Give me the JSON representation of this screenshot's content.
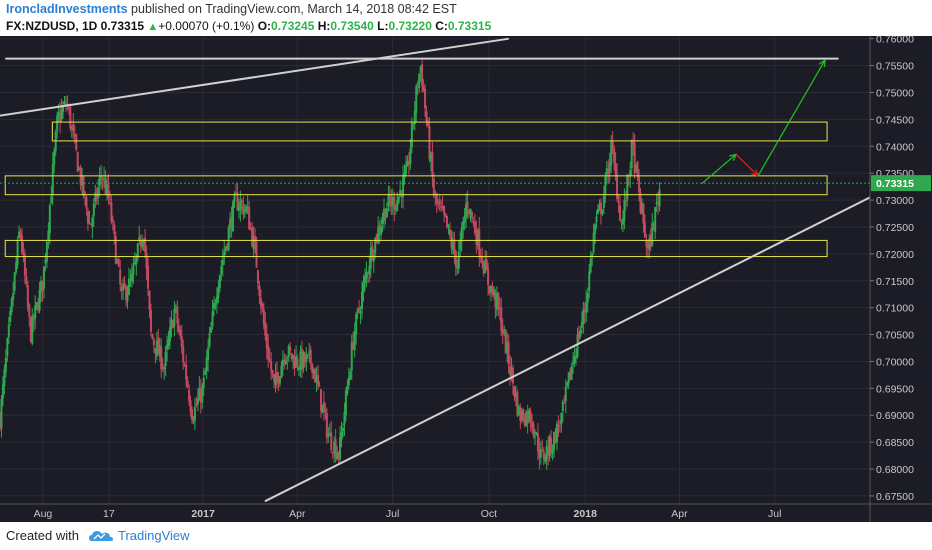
{
  "header": {
    "author": "IroncladInvestments",
    "published_text": " published on TradingView.com, March 14, 2018 08:42 EST",
    "symbol": "FX:NZDUSD, 1D",
    "last": " 0.73315 ",
    "up_symbol": "▲",
    "change": "+0.00070 (+0.1%)",
    "o_label": " O:",
    "o_value": "0.73245",
    "h_label": " H:",
    "h_value": "0.73540",
    "l_label": " L:",
    "l_value": "0.73220",
    "c_label": " C:",
    "c_value": "0.73315"
  },
  "footer": {
    "created_with": "Created with",
    "brand": "TradingView",
    "logo_icon": "tradingview-cloud-icon"
  },
  "colors": {
    "background": "#1b1c25",
    "grid": "#2a2b36",
    "up_candle": "#2fa84f",
    "down_candle": "#c54a5f",
    "zone_border": "#e6e64a",
    "trendline": "#d0d0d0",
    "arrow_green": "#21c421",
    "arrow_red": "#e02020",
    "price_tag": "#2fa84f",
    "axis_text": "#c8c8c8"
  },
  "chart_data": {
    "type": "candlestick",
    "symbol": "NZDUSD",
    "interval": "1D",
    "xlabel": "",
    "ylabel": "",
    "x_range": [
      "2016-06-21",
      "2018-09-30"
    ],
    "ylim": [
      0.6735,
      0.7605
    ],
    "y_ticks": [
      "0.76000",
      "0.75500",
      "0.75000",
      "0.74500",
      "0.74000",
      "0.73500",
      "0.73000",
      "0.72500",
      "0.72000",
      "0.71500",
      "0.71000",
      "0.70500",
      "0.70000",
      "0.69500",
      "0.69000",
      "0.68500",
      "0.68000",
      "0.67500"
    ],
    "x_ticks": [
      {
        "label": "Aug",
        "date": "2016-08-01",
        "bold": false
      },
      {
        "label": "17",
        "date": "2016-10-03",
        "bold": false
      },
      {
        "label": "2017",
        "date": "2017-01-01",
        "bold": true
      },
      {
        "label": "Apr",
        "date": "2017-04-01",
        "bold": false
      },
      {
        "label": "Jul",
        "date": "2017-07-01",
        "bold": false
      },
      {
        "label": "Oct",
        "date": "2017-10-01",
        "bold": false
      },
      {
        "label": "2018",
        "date": "2018-01-01",
        "bold": true
      },
      {
        "label": "Apr",
        "date": "2018-04-01",
        "bold": false
      },
      {
        "label": "Jul",
        "date": "2018-07-01",
        "bold": false
      }
    ],
    "price_label": "0.73315",
    "last_price": 0.73315,
    "price_path": [
      [
        "2016-06-21",
        0.6895
      ],
      [
        "2016-07-02",
        0.71
      ],
      [
        "2016-07-10",
        0.725
      ],
      [
        "2016-07-20",
        0.705
      ],
      [
        "2016-08-01",
        0.715
      ],
      [
        "2016-08-15",
        0.745
      ],
      [
        "2016-08-24",
        0.748
      ],
      [
        "2016-09-05",
        0.735
      ],
      [
        "2016-09-15",
        0.725
      ],
      [
        "2016-09-26",
        0.735
      ],
      [
        "2016-10-03",
        0.73
      ],
      [
        "2016-10-15",
        0.712
      ],
      [
        "2016-10-25",
        0.715
      ],
      [
        "2016-11-05",
        0.725
      ],
      [
        "2016-11-12",
        0.705
      ],
      [
        "2016-11-25",
        0.699
      ],
      [
        "2016-12-05",
        0.71
      ],
      [
        "2016-12-22",
        0.69
      ],
      [
        "2017-01-01",
        0.695
      ],
      [
        "2017-01-15",
        0.715
      ],
      [
        "2017-02-01",
        0.73
      ],
      [
        "2017-02-12",
        0.728
      ],
      [
        "2017-02-20",
        0.72
      ],
      [
        "2017-03-01",
        0.705
      ],
      [
        "2017-03-10",
        0.695
      ],
      [
        "2017-03-20",
        0.702
      ],
      [
        "2017-04-01",
        0.7
      ],
      [
        "2017-04-15",
        0.7
      ],
      [
        "2017-05-01",
        0.686
      ],
      [
        "2017-05-11",
        0.683
      ],
      [
        "2017-05-25",
        0.705
      ],
      [
        "2017-06-10",
        0.72
      ],
      [
        "2017-06-25",
        0.729
      ],
      [
        "2017-07-05",
        0.73
      ],
      [
        "2017-07-15",
        0.735
      ],
      [
        "2017-07-25",
        0.752
      ],
      [
        "2017-07-28",
        0.755
      ],
      [
        "2017-08-10",
        0.73
      ],
      [
        "2017-08-20",
        0.726
      ],
      [
        "2017-09-01",
        0.718
      ],
      [
        "2017-09-10",
        0.73
      ],
      [
        "2017-09-20",
        0.723
      ],
      [
        "2017-09-30",
        0.715
      ],
      [
        "2017-10-10",
        0.71
      ],
      [
        "2017-10-20",
        0.7
      ],
      [
        "2017-10-30",
        0.69
      ],
      [
        "2017-11-10",
        0.69
      ],
      [
        "2017-11-20",
        0.682
      ],
      [
        "2017-12-01",
        0.685
      ],
      [
        "2017-12-10",
        0.69
      ],
      [
        "2017-12-20",
        0.7
      ],
      [
        "2018-01-01",
        0.71
      ],
      [
        "2018-01-10",
        0.725
      ],
      [
        "2018-01-18",
        0.73
      ],
      [
        "2018-01-26",
        0.74
      ],
      [
        "2018-02-05",
        0.725
      ],
      [
        "2018-02-15",
        0.74
      ],
      [
        "2018-02-22",
        0.73
      ],
      [
        "2018-03-02",
        0.72
      ],
      [
        "2018-03-14",
        0.73315
      ]
    ],
    "annotations": {
      "zones": [
        {
          "top": 0.7445,
          "bottom": 0.741,
          "start": "2016-08-10",
          "end": "2018-08-20"
        },
        {
          "top": 0.7345,
          "bottom": 0.731,
          "start": "2016-06-26",
          "end": "2018-08-20"
        },
        {
          "top": 0.7225,
          "bottom": 0.7195,
          "start": "2016-06-26",
          "end": "2018-08-20"
        }
      ],
      "lines": [
        {
          "x1": "2016-06-21",
          "y1": 0.7457,
          "x2": "2017-10-20",
          "y2": 0.76,
          "name": "upper-trendline"
        },
        {
          "x1": "2016-06-26",
          "y1": 0.7563,
          "x2": "2018-08-31",
          "y2": 0.7563,
          "name": "horizontal-resistance-line"
        },
        {
          "x1": "2017-03-01",
          "y1": 0.674,
          "x2": "2018-09-30",
          "y2": 0.7305,
          "name": "rising-support-trendline"
        }
      ],
      "arrows": [
        {
          "x1": "2018-04-22",
          "y1": 0.733,
          "x2": "2018-05-25",
          "y2": 0.7385,
          "color": "green",
          "name": "arrow-up-1"
        },
        {
          "x1": "2018-05-25",
          "y1": 0.7385,
          "x2": "2018-06-15",
          "y2": 0.7345,
          "color": "red",
          "name": "arrow-down"
        },
        {
          "x1": "2018-06-15",
          "y1": 0.7345,
          "x2": "2018-08-18",
          "y2": 0.756,
          "color": "green",
          "name": "arrow-up-2"
        }
      ]
    }
  }
}
